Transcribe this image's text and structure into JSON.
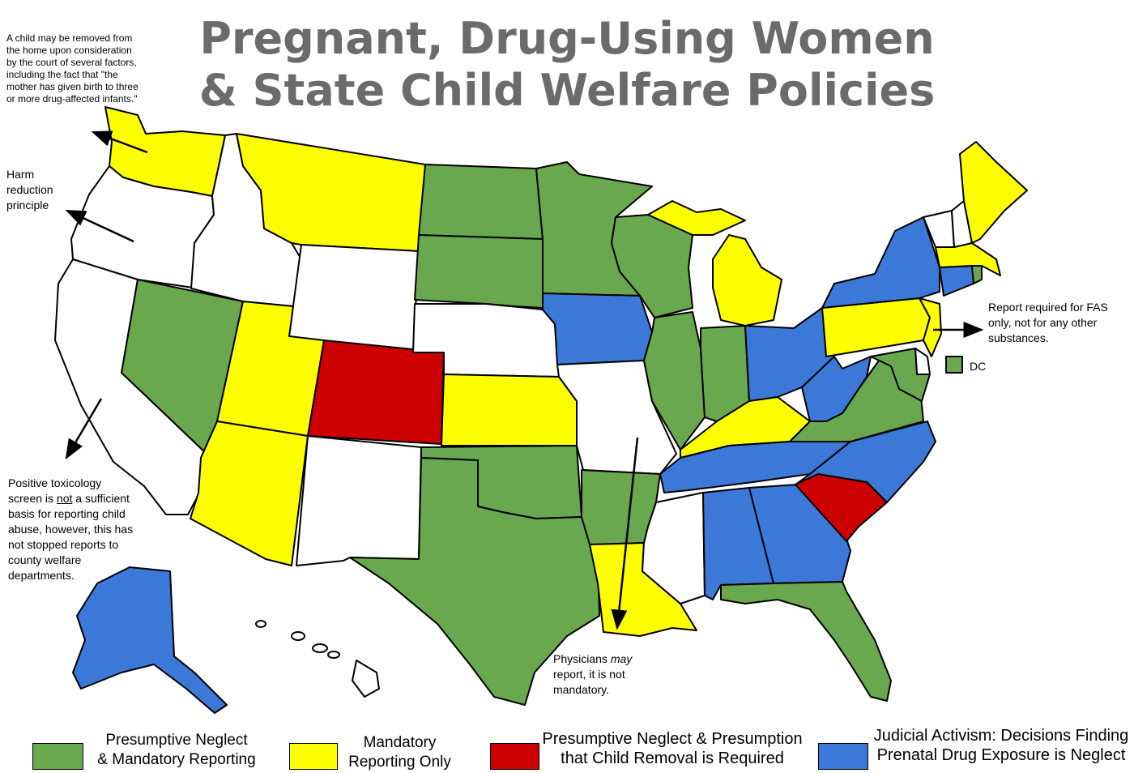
{
  "title": {
    "line1": "Pregnant, Drug-Using Women",
    "line2": "& State Child Welfare Policies"
  },
  "colors": {
    "green": "#6aa84f",
    "yellow": "#ffff00",
    "red": "#cc0000",
    "blue": "#3c78d8",
    "white": "#ffffff"
  },
  "states": {
    "WA": "yellow",
    "OR": "white",
    "CA": "white",
    "ID": "white",
    "NV": "green",
    "MT": "yellow",
    "WY": "white",
    "UT": "yellow",
    "AZ": "yellow",
    "CO": "red",
    "NM": "white",
    "ND": "green",
    "SD": "green",
    "NE": "white",
    "KS": "yellow",
    "OK": "green",
    "TX": "green",
    "MN": "green",
    "IA": "blue",
    "MO": "white",
    "AR": "green",
    "LA": "yellow",
    "WI": "green",
    "IL": "green",
    "MI": "yellow",
    "IN": "green",
    "OH": "blue",
    "KY": "yellow",
    "TN": "blue",
    "MS": "white",
    "AL": "blue",
    "GA": "blue",
    "FL": "green",
    "SC": "red",
    "NC": "blue",
    "VA": "green",
    "WV": "blue",
    "PA": "yellow",
    "NY": "blue",
    "NJ": "yellow",
    "MD": "green",
    "DE": "white",
    "CT": "blue",
    "RI": "green",
    "MA": "yellow",
    "VT": "white",
    "NH": "white",
    "ME": "yellow",
    "AK": "blue",
    "HI": "white",
    "DC": "green"
  },
  "notes": {
    "washington": "A child may be removed from the home upon consideration by the court of several factors, including the fact that \"the mother has given birth to three or more drug-affected infants.\"",
    "oregon": "Harm reduction principle",
    "california_part1": "Positive toxicology screen is ",
    "california_not": "not",
    "california_part2": " a sufficient basis for reporting child abuse, however, this has not stopped reports to county welfare departments.",
    "new_jersey": "Report required for FAS only, not for any other substances.",
    "missouri_part1": "Physicians ",
    "missouri_may": "may",
    "missouri_part2": " report, it is not mandatory."
  },
  "dc_label": "DC",
  "legend": [
    {
      "line1": "Presumptive Neglect",
      "line2": "& Mandatory Reporting",
      "color": "green"
    },
    {
      "line1": "Mandatory",
      "line2": "Reporting Only",
      "color": "yellow"
    },
    {
      "line1": "Presumptive Neglect & Presumption",
      "line2": "that Child Removal is Required",
      "color": "red"
    },
    {
      "line1": "Judicial Activism: Decisions Finding",
      "line2": "Prenatal Drug Exposure is Neglect",
      "color": "blue"
    }
  ]
}
